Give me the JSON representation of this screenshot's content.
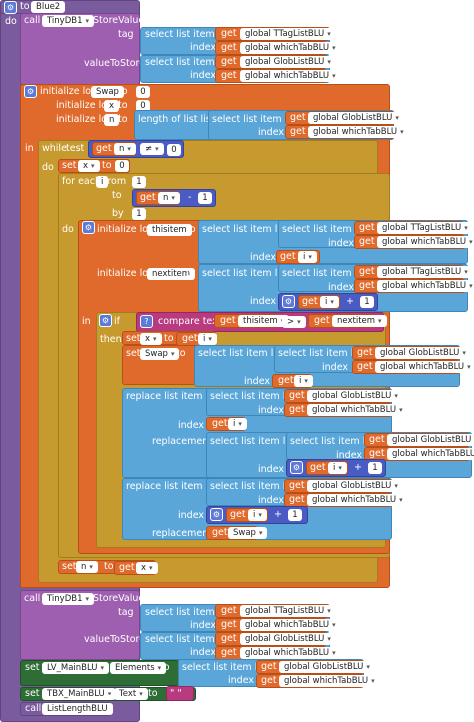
{
  "proc": {
    "to": "to",
    "name": "Blue2",
    "do": "do"
  },
  "w": {
    "call": "call",
    "tinydb": "TinyDB1",
    "store": ".StoreValue",
    "tag": "tag",
    "index": "index",
    "valueToStore": "valueToStore",
    "select": "select list item  list",
    "get": "get",
    "init_local": "initialize local",
    "to": "to",
    "in": "in",
    "while": "while",
    "test": "test",
    "length": "length of list  list",
    "set": "set",
    "for_each": "for each",
    "from": "from",
    "by": "by",
    "if": "if",
    "then": "then",
    "compare": "compare texts",
    "replace": "replace list item  list",
    "replacement": "replacement",
    "neq": "≠",
    "minus": "-",
    "plus": "+",
    "gt": ">",
    "dot": ".",
    "quote": "\" \""
  },
  "v": {
    "ttag": "global TTagListBLU",
    "which": "global whichTabBLU",
    "glob": "global GlobListBLU",
    "swap": "Swap",
    "x": "x",
    "n": "n",
    "i": "i",
    "thisitem": "thisitem",
    "nextitem": "nextitem",
    "zero": "0",
    "one": "1"
  },
  "c": {
    "lv": "LV_MainBLU",
    "elements": "Elements",
    "tbx": "TBX_MainBLU",
    "text": "Text",
    "listlength": "ListLengthBLU"
  },
  "colors": {
    "procedure": "#7a5b9e",
    "variable": "#e06a2b",
    "list": "#5ba6d9",
    "control": "#c79a2f",
    "math": "#4a5bc4",
    "text": "#b93a7e",
    "component": "#2e6d35"
  }
}
